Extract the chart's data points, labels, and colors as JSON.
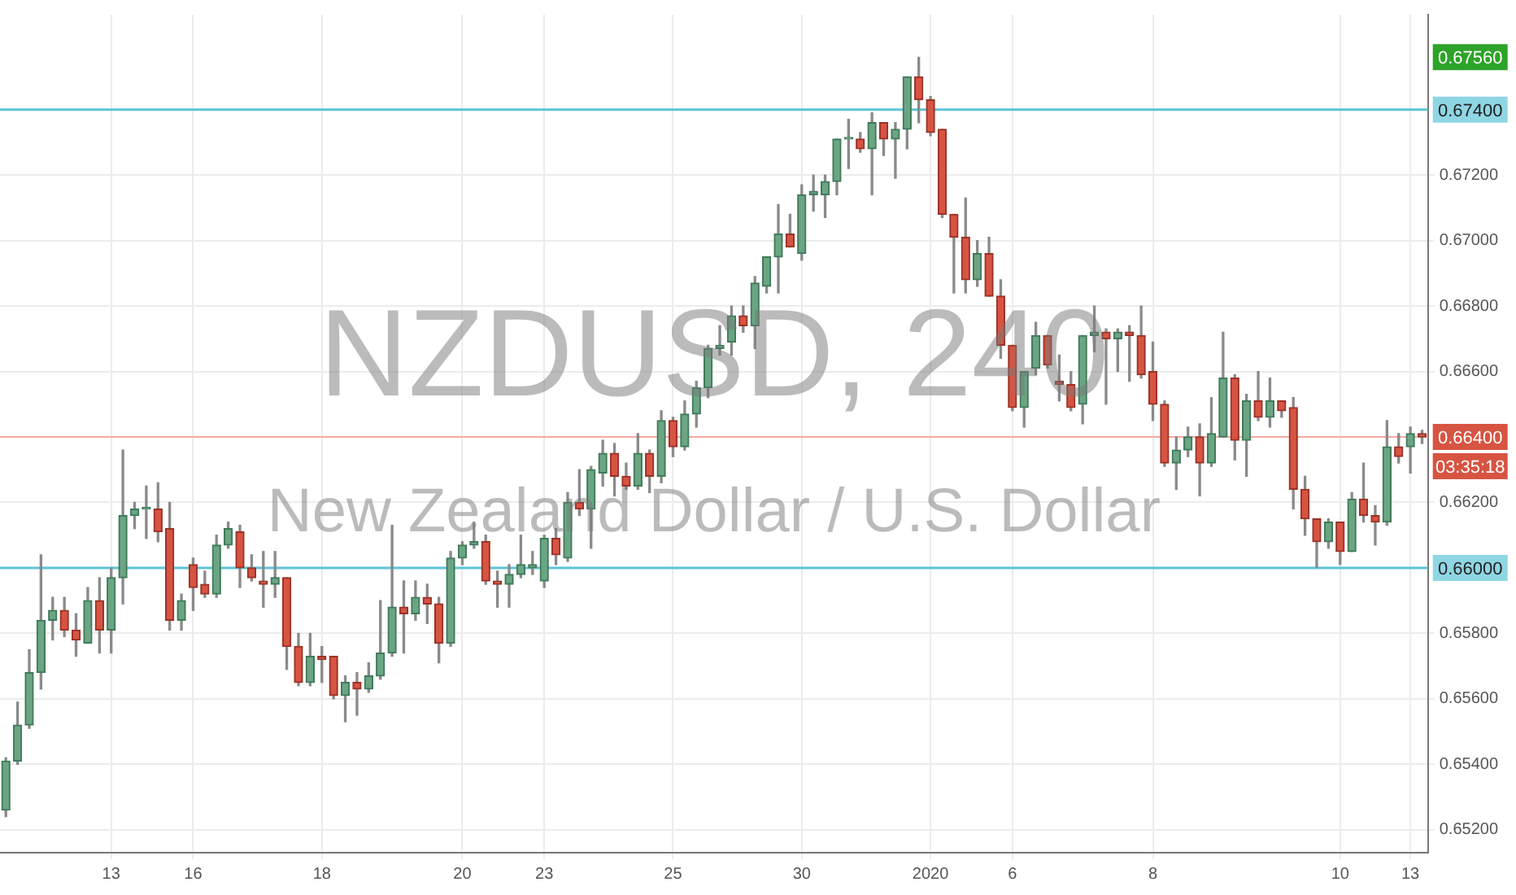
{
  "chart_data": {
    "type": "candlestick",
    "title": "NZDUSD, 240",
    "subtitle": "New Zealand Dollar / U.S. Dollar",
    "categories": [
      null,
      null,
      null,
      null,
      null,
      null,
      null,
      null,
      null,
      "13",
      null,
      null,
      null,
      null,
      null,
      null,
      "16",
      null,
      null,
      null,
      null,
      null,
      null,
      null,
      null,
      null,
      null,
      "18",
      null,
      null,
      null,
      null,
      null,
      null,
      null,
      null,
      null,
      null,
      null,
      "20",
      null,
      null,
      null,
      null,
      null,
      null,
      "23",
      null,
      null,
      null,
      null,
      null,
      null,
      null,
      null,
      null,
      null,
      "25",
      null,
      null,
      null,
      null,
      null,
      null,
      null,
      null,
      null,
      null,
      "30",
      null,
      null,
      null,
      null,
      null,
      null,
      null,
      null,
      null,
      null,
      "2020",
      null,
      null,
      null,
      null,
      null,
      null,
      "6",
      null,
      null,
      null,
      null,
      null,
      null,
      null,
      null,
      null,
      null,
      null,
      "8",
      null,
      null,
      null,
      null,
      null,
      null,
      null,
      null,
      null,
      null,
      null,
      null,
      null,
      null,
      null,
      "10",
      null,
      null,
      null,
      null,
      null,
      "13",
      null
    ],
    "ohlc": [
      [
        0.6526,
        0.6542,
        0.6524,
        0.6541
      ],
      [
        0.6541,
        0.6559,
        0.654,
        0.6552
      ],
      [
        0.6552,
        0.6575,
        0.6551,
        0.6568
      ],
      [
        0.6568,
        0.6604,
        0.6563,
        0.6584
      ],
      [
        0.6584,
        0.6591,
        0.6578,
        0.6587
      ],
      [
        0.6587,
        0.6591,
        0.6579,
        0.6581
      ],
      [
        0.6581,
        0.6586,
        0.6573,
        0.6578
      ],
      [
        0.6577,
        0.6594,
        0.6577,
        0.659
      ],
      [
        0.659,
        0.6597,
        0.6574,
        0.6581
      ],
      [
        0.6581,
        0.66,
        0.6574,
        0.6597
      ],
      [
        0.6597,
        0.6636,
        0.6589,
        0.6616
      ],
      [
        0.6616,
        0.662,
        0.6612,
        0.6618
      ],
      [
        0.6618,
        0.6625,
        0.6609,
        0.6618
      ],
      [
        0.6618,
        0.6626,
        0.6608,
        0.6611
      ],
      [
        0.6612,
        0.662,
        0.6581,
        0.6584
      ],
      [
        0.6584,
        0.6592,
        0.6581,
        0.659
      ],
      [
        0.6601,
        0.6603,
        0.6587,
        0.6594
      ],
      [
        0.6595,
        0.6599,
        0.6591,
        0.6592
      ],
      [
        0.6592,
        0.661,
        0.6591,
        0.6607
      ],
      [
        0.6607,
        0.6614,
        0.6606,
        0.6612
      ],
      [
        0.6611,
        0.6613,
        0.6594,
        0.66
      ],
      [
        0.66,
        0.6604,
        0.6596,
        0.6597
      ],
      [
        0.6596,
        0.6605,
        0.6588,
        0.6595
      ],
      [
        0.6595,
        0.6605,
        0.6591,
        0.6597
      ],
      [
        0.6597,
        0.6597,
        0.6569,
        0.6576
      ],
      [
        0.6576,
        0.658,
        0.6564,
        0.6565
      ],
      [
        0.6565,
        0.658,
        0.6564,
        0.6573
      ],
      [
        0.6573,
        0.6576,
        0.6565,
        0.6572
      ],
      [
        0.6573,
        0.6573,
        0.656,
        0.6561
      ],
      [
        0.6561,
        0.6567,
        0.6553,
        0.6565
      ],
      [
        0.6565,
        0.6568,
        0.6555,
        0.6563
      ],
      [
        0.6563,
        0.6571,
        0.6562,
        0.6567
      ],
      [
        0.6567,
        0.659,
        0.6566,
        0.6574
      ],
      [
        0.6574,
        0.6613,
        0.6573,
        0.6588
      ],
      [
        0.6588,
        0.6596,
        0.6574,
        0.6586
      ],
      [
        0.6586,
        0.6596,
        0.6584,
        0.6591
      ],
      [
        0.6591,
        0.6595,
        0.6583,
        0.6589
      ],
      [
        0.6589,
        0.6591,
        0.6571,
        0.6577
      ],
      [
        0.6577,
        0.6605,
        0.6576,
        0.6603
      ],
      [
        0.6603,
        0.6608,
        0.6601,
        0.6607
      ],
      [
        0.6607,
        0.6614,
        0.6606,
        0.6608
      ],
      [
        0.6608,
        0.661,
        0.6595,
        0.6596
      ],
      [
        0.6596,
        0.6599,
        0.6588,
        0.6595
      ],
      [
        0.6595,
        0.6601,
        0.6588,
        0.6598
      ],
      [
        0.6598,
        0.661,
        0.6597,
        0.6601
      ],
      [
        0.66,
        0.6605,
        0.6598,
        0.6601
      ],
      [
        0.6596,
        0.661,
        0.6594,
        0.6609
      ],
      [
        0.6609,
        0.6612,
        0.6601,
        0.6604
      ],
      [
        0.6603,
        0.6623,
        0.6602,
        0.662
      ],
      [
        0.662,
        0.663,
        0.6616,
        0.6618
      ],
      [
        0.6618,
        0.6631,
        0.6606,
        0.663
      ],
      [
        0.6629,
        0.6639,
        0.6625,
        0.6635
      ],
      [
        0.6635,
        0.6638,
        0.6622,
        0.6628
      ],
      [
        0.6628,
        0.6632,
        0.6624,
        0.6625
      ],
      [
        0.6625,
        0.6641,
        0.6624,
        0.6635
      ],
      [
        0.6635,
        0.6636,
        0.6623,
        0.6628
      ],
      [
        0.6628,
        0.6648,
        0.6626,
        0.6645
      ],
      [
        0.6645,
        0.6646,
        0.6634,
        0.6637
      ],
      [
        0.6637,
        0.6651,
        0.6636,
        0.6647
      ],
      [
        0.6647,
        0.6657,
        0.6643,
        0.6655
      ],
      [
        0.6655,
        0.6668,
        0.6652,
        0.6667
      ],
      [
        0.6667,
        0.6674,
        0.6665,
        0.6668
      ],
      [
        0.6669,
        0.668,
        0.6665,
        0.6677
      ],
      [
        0.6677,
        0.668,
        0.6672,
        0.6674
      ],
      [
        0.6674,
        0.6689,
        0.6667,
        0.6687
      ],
      [
        0.6686,
        0.6695,
        0.6684,
        0.6695
      ],
      [
        0.6695,
        0.6711,
        0.6684,
        0.6702
      ],
      [
        0.6702,
        0.6708,
        0.6698,
        0.6698
      ],
      [
        0.6696,
        0.6717,
        0.6694,
        0.6714
      ],
      [
        0.6714,
        0.672,
        0.6709,
        0.6715
      ],
      [
        0.6714,
        0.672,
        0.6707,
        0.6718
      ],
      [
        0.6718,
        0.6731,
        0.6714,
        0.6731
      ],
      [
        0.6731,
        0.6737,
        0.6722,
        0.6731
      ],
      [
        0.6731,
        0.6733,
        0.6727,
        0.6728
      ],
      [
        0.6728,
        0.6739,
        0.6714,
        0.6736
      ],
      [
        0.6736,
        0.6736,
        0.6726,
        0.6731
      ],
      [
        0.6731,
        0.6736,
        0.6719,
        0.6734
      ],
      [
        0.6734,
        0.675,
        0.6728,
        0.675
      ],
      [
        0.675,
        0.6756,
        0.6736,
        0.6743
      ],
      [
        0.6743,
        0.6744,
        0.6732,
        0.6733
      ],
      [
        0.6734,
        0.6734,
        0.6707,
        0.6708
      ],
      [
        0.6708,
        0.6708,
        0.6684,
        0.6701
      ],
      [
        0.6701,
        0.6713,
        0.6684,
        0.6688
      ],
      [
        0.6688,
        0.67,
        0.6686,
        0.6696
      ],
      [
        0.6696,
        0.6701,
        0.6683,
        0.6683
      ],
      [
        0.6683,
        0.6688,
        0.6664,
        0.6668
      ],
      [
        0.6668,
        0.6668,
        0.6648,
        0.6649
      ],
      [
        0.6649,
        0.666,
        0.6643,
        0.666
      ],
      [
        0.6661,
        0.6675,
        0.6659,
        0.6671
      ],
      [
        0.6671,
        0.6671,
        0.6661,
        0.6662
      ],
      [
        0.6657,
        0.6665,
        0.6651,
        0.6656
      ],
      [
        0.6656,
        0.666,
        0.6648,
        0.6649
      ],
      [
        0.665,
        0.6671,
        0.6644,
        0.6671
      ],
      [
        0.6671,
        0.668,
        0.6666,
        0.6672
      ],
      [
        0.6672,
        0.6673,
        0.665,
        0.667
      ],
      [
        0.667,
        0.6673,
        0.666,
        0.6672
      ],
      [
        0.6672,
        0.6674,
        0.6657,
        0.6671
      ],
      [
        0.6671,
        0.668,
        0.6658,
        0.6659
      ],
      [
        0.666,
        0.6669,
        0.6645,
        0.665
      ],
      [
        0.665,
        0.6651,
        0.6631,
        0.6632
      ],
      [
        0.6632,
        0.664,
        0.6624,
        0.6636
      ],
      [
        0.6636,
        0.6643,
        0.6634,
        0.664
      ],
      [
        0.664,
        0.6644,
        0.6622,
        0.6632
      ],
      [
        0.6632,
        0.6652,
        0.6631,
        0.6641
      ],
      [
        0.664,
        0.6672,
        0.664,
        0.6658
      ],
      [
        0.6658,
        0.6659,
        0.6633,
        0.6639
      ],
      [
        0.6639,
        0.6653,
        0.6628,
        0.6651
      ],
      [
        0.6651,
        0.666,
        0.6645,
        0.6646
      ],
      [
        0.6646,
        0.6658,
        0.6643,
        0.6651
      ],
      [
        0.6651,
        0.6651,
        0.6646,
        0.6648
      ],
      [
        0.6649,
        0.6652,
        0.6618,
        0.6624
      ],
      [
        0.6624,
        0.6628,
        0.661,
        0.6615
      ],
      [
        0.6615,
        0.6615,
        0.66,
        0.6608
      ],
      [
        0.6608,
        0.6615,
        0.6606,
        0.6614
      ],
      [
        0.6614,
        0.6614,
        0.6601,
        0.6605
      ],
      [
        0.6605,
        0.6623,
        0.6605,
        0.6621
      ],
      [
        0.6621,
        0.6632,
        0.6614,
        0.6616
      ],
      [
        0.6616,
        0.6619,
        0.6607,
        0.6614
      ],
      [
        0.6614,
        0.6645,
        0.6613,
        0.6637
      ],
      [
        0.6637,
        0.6641,
        0.6632,
        0.6634
      ],
      [
        0.6637,
        0.6643,
        0.6629,
        0.6641
      ],
      [
        0.6641,
        0.6642,
        0.6638,
        0.664
      ]
    ],
    "ylim": [
      0.6513,
      0.6769
    ],
    "yticks": [
      {
        "value": 0.652,
        "label": "0.65200"
      },
      {
        "value": 0.654,
        "label": "0.65400"
      },
      {
        "value": 0.656,
        "label": "0.65600"
      },
      {
        "value": 0.658,
        "label": "0.65800"
      },
      {
        "value": 0.662,
        "label": "0.66200"
      },
      {
        "value": 0.666,
        "label": "0.66600"
      },
      {
        "value": 0.668,
        "label": "0.66800"
      },
      {
        "value": 0.67,
        "label": "0.67000"
      },
      {
        "value": 0.672,
        "label": "0.67200"
      }
    ],
    "grid": true,
    "ref_lines": [
      {
        "axis": "y",
        "value": 0.674,
        "label": "0.67400",
        "color": "#5cc4d6"
      },
      {
        "axis": "y",
        "value": 0.66,
        "label": "0.66000",
        "color": "#5cc4d6"
      },
      {
        "axis": "y",
        "value": 0.664,
        "label": "0.66400",
        "color": "#f2aaa2"
      }
    ],
    "annotations": [
      "0.67560",
      "03:35:18"
    ]
  }
}
